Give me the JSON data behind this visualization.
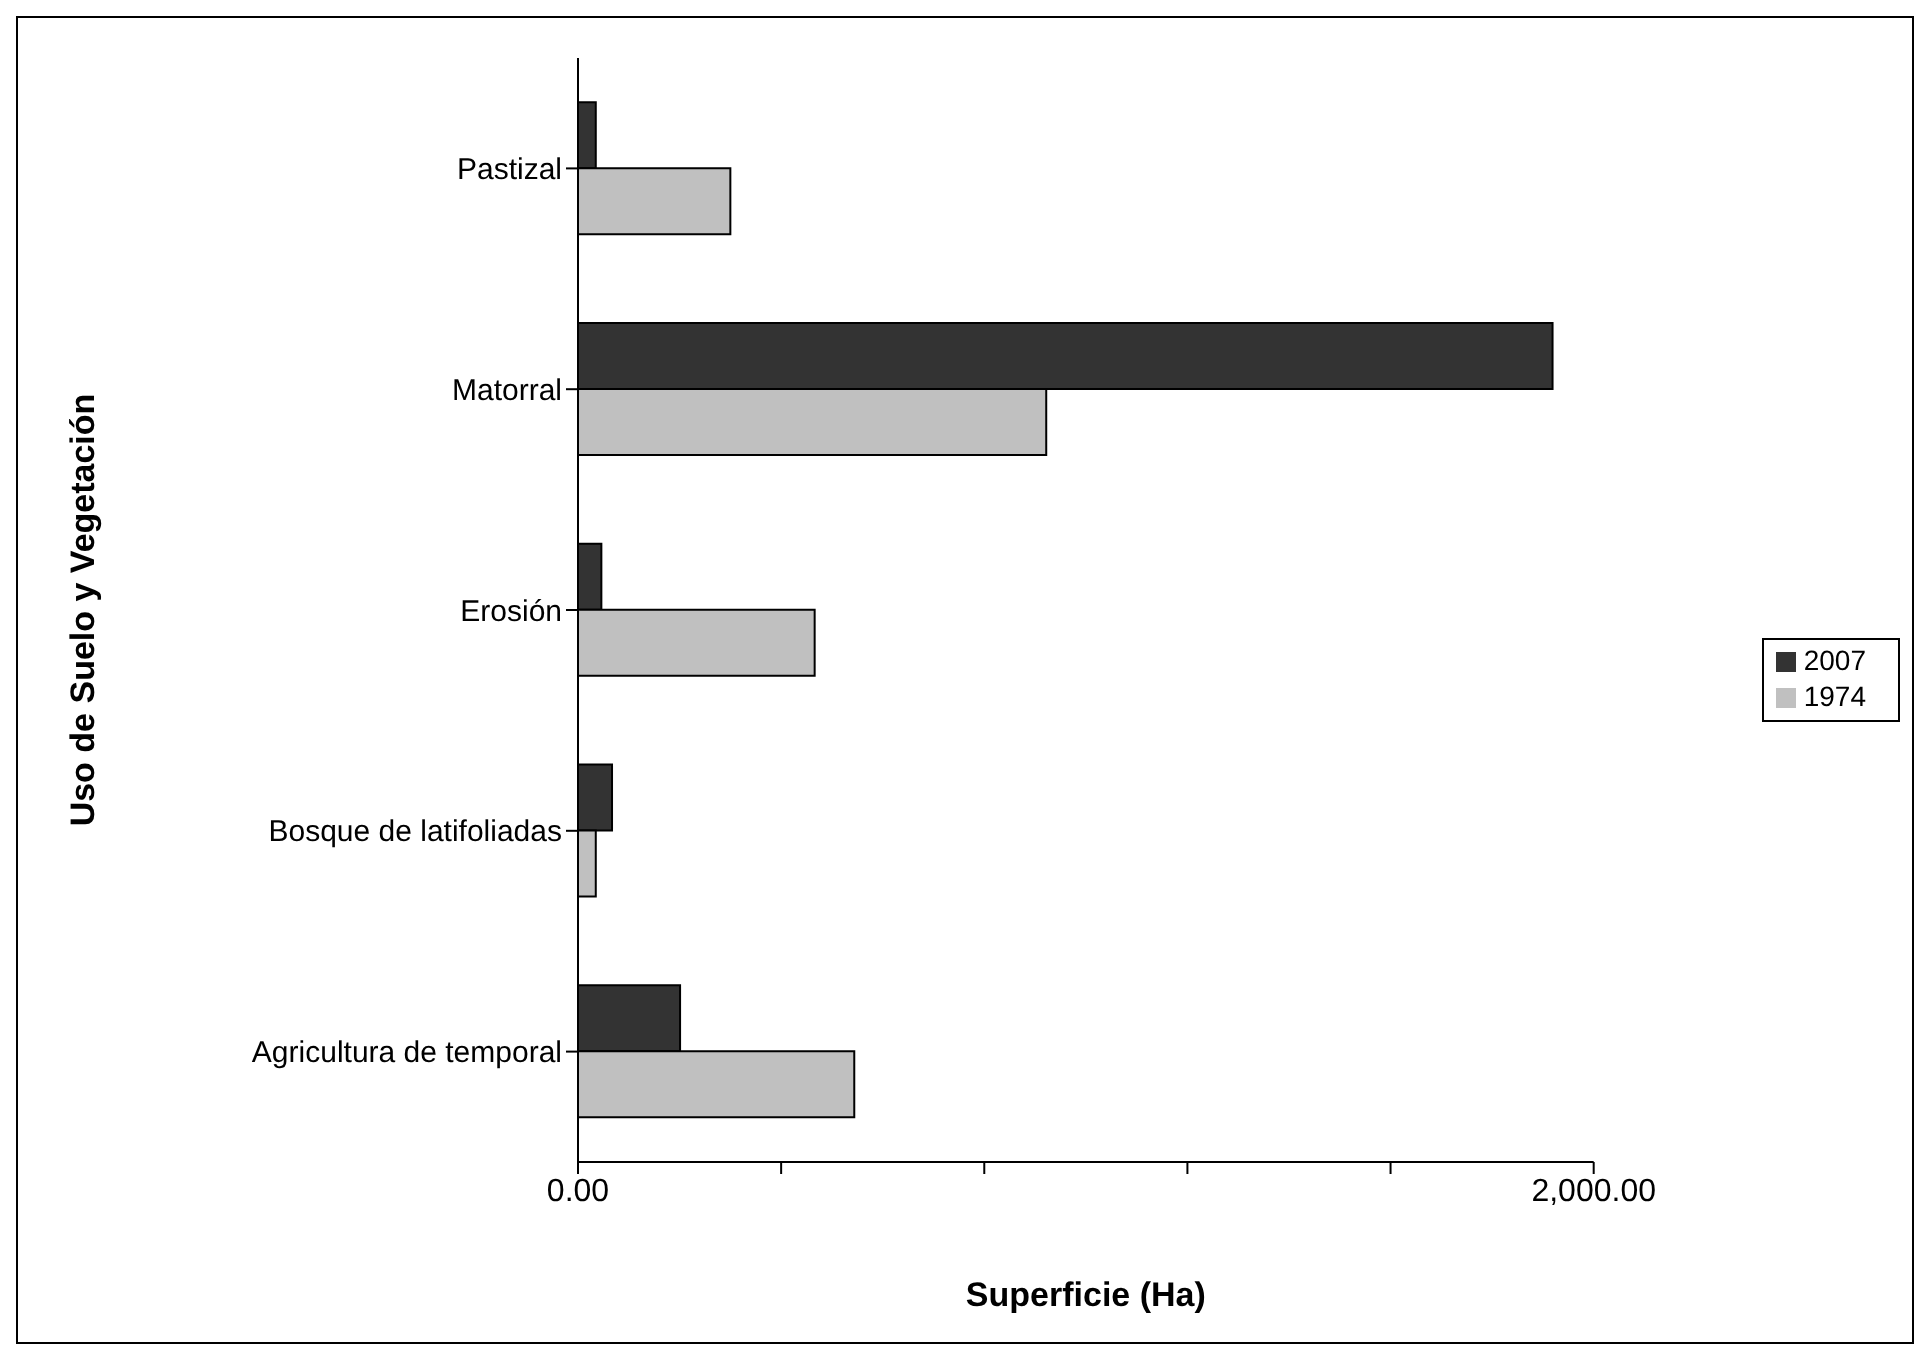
{
  "chart_data": {
    "type": "bar",
    "orientation": "horizontal",
    "xlabel": "Superficie (Ha)",
    "ylabel": "Uso de Suelo y Vegetación",
    "categories": [
      "Pastizal",
      "Matorral",
      "Erosión",
      "Bosque de latifoliadas",
      "Agricultura de temporal"
    ],
    "series": [
      {
        "name": "2007",
        "color": "#333333",
        "values": [
          35,
          1919,
          46,
          67,
          201
        ]
      },
      {
        "name": "1974",
        "color": "#c0c0c0",
        "values": [
          300,
          922,
          466,
          35,
          544
        ]
      }
    ],
    "xlim": [
      0,
      2000
    ],
    "xticks": [
      {
        "value": 0,
        "label": "0.00"
      },
      {
        "value": 400,
        "label": null
      },
      {
        "value": 800,
        "label": null
      },
      {
        "value": 1200,
        "label": null
      },
      {
        "value": 1600,
        "label": null
      },
      {
        "value": 2000,
        "label": "2,000.00"
      }
    ],
    "grid": false,
    "legend": "right"
  }
}
